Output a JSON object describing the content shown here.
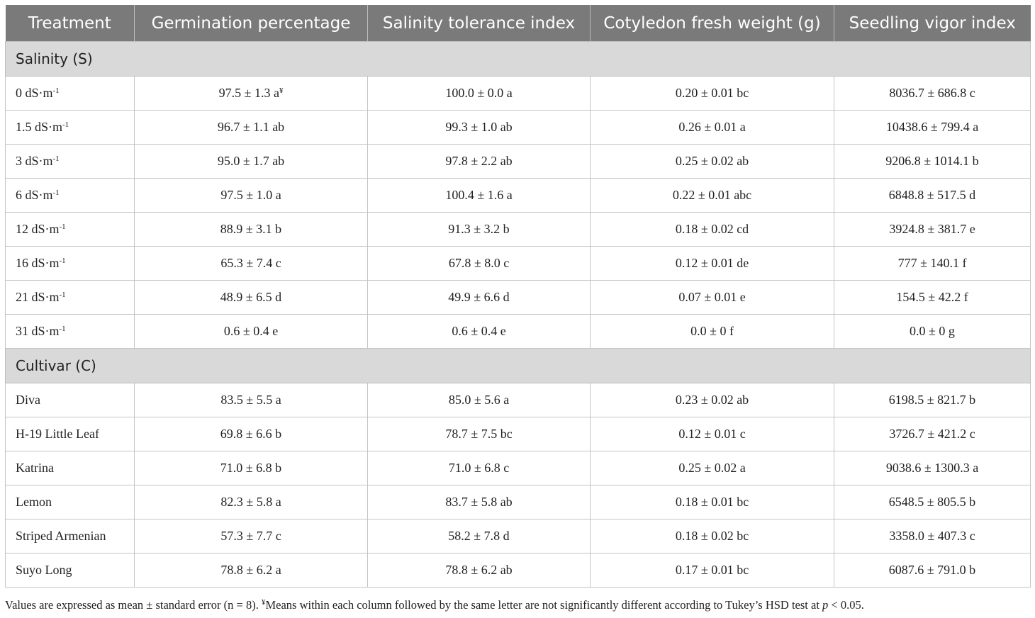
{
  "columns": [
    "Treatment",
    "Germination percentage",
    "Salinity tolerance index",
    "Cotyledon fresh weight (g)",
    "Seedling vigor index"
  ],
  "sections": [
    {
      "title": "Salinity (S)",
      "rows": [
        {
          "label": "0 dS·m",
          "sup": "-1",
          "cells": [
            "97.5 ± 1.3 a",
            "100.0 ± 0.0 a",
            "0.20 ± 0.01 bc",
            "8036.7 ± 686.8 c"
          ],
          "first_cell_sup": "¥"
        },
        {
          "label": "1.5 dS·m",
          "sup": "-1",
          "cells": [
            "96.7 ± 1.1 ab",
            "99.3 ± 1.0 ab",
            "0.26 ± 0.01 a",
            "10438.6 ± 799.4 a"
          ]
        },
        {
          "label": "3 dS·m",
          "sup": "-1",
          "cells": [
            "95.0 ± 1.7 ab",
            "97.8 ± 2.2 ab",
            "0.25 ± 0.02 ab",
            "9206.8 ± 1014.1 b"
          ]
        },
        {
          "label": "6 dS·m",
          "sup": "-1",
          "cells": [
            "97.5 ± 1.0 a",
            "100.4 ± 1.6 a",
            "0.22 ± 0.01 abc",
            "6848.8 ± 517.5 d"
          ]
        },
        {
          "label": "12 dS·m",
          "sup": "-1",
          "cells": [
            "88.9 ± 3.1 b",
            "91.3 ± 3.2 b",
            "0.18 ± 0.02 cd",
            "3924.8 ± 381.7 e"
          ]
        },
        {
          "label": "16 dS·m",
          "sup": "-1",
          "cells": [
            "65.3 ± 7.4 c",
            "67.8 ± 8.0 c",
            "0.12 ± 0.01 de",
            "777 ± 140.1 f"
          ]
        },
        {
          "label": "21 dS·m",
          "sup": "-1",
          "cells": [
            "48.9 ± 6.5 d",
            "49.9 ± 6.6 d",
            "0.07 ± 0.01 e",
            "154.5 ± 42.2 f"
          ]
        },
        {
          "label": "31 dS·m",
          "sup": "-1",
          "cells": [
            "0.6 ± 0.4 e",
            "0.6 ± 0.4 e",
            "0.0 ± 0 f",
            "0.0 ± 0 g"
          ]
        }
      ]
    },
    {
      "title": "Cultivar (C)",
      "rows": [
        {
          "label": "Diva",
          "cells": [
            "83.5 ± 5.5 a",
            "85.0 ± 5.6 a",
            "0.23 ± 0.02 ab",
            "6198.5 ± 821.7 b"
          ]
        },
        {
          "label": "H-19 Little Leaf",
          "cells": [
            "69.8 ± 6.6 b",
            "78.7 ± 7.5 bc",
            "0.12 ± 0.01 c",
            "3726.7 ± 421.2 c"
          ]
        },
        {
          "label": "Katrina",
          "cells": [
            "71.0 ± 6.8 b",
            "71.0 ± 6.8 c",
            "0.25 ± 0.02 a",
            "9038.6 ± 1300.3 a"
          ]
        },
        {
          "label": "Lemon",
          "cells": [
            "82.3 ± 5.8 a",
            "83.7 ± 5.8 ab",
            "0.18 ± 0.01 bc",
            "6548.5 ± 805.5 b"
          ]
        },
        {
          "label": "Striped Armenian",
          "cells": [
            "57.3 ± 7.7 c",
            "58.2 ± 7.8 d",
            "0.18 ± 0.02 bc",
            "3358.0 ± 407.3 c"
          ]
        },
        {
          "label": "Suyo Long",
          "cells": [
            "78.8 ± 6.2 a",
            "78.8 ± 6.2 ab",
            "0.17 ± 0.01 bc",
            "6087.6 ± 791.0 b"
          ]
        }
      ]
    }
  ],
  "footnote": {
    "part1": "Values are expressed as mean ± standard error (n = 8). ",
    "sup": "¥",
    "part2": "Means within each column followed by the same letter are not significantly different according to Tukey’s HSD test at ",
    "italic": "p",
    "part3": " < 0.05."
  }
}
